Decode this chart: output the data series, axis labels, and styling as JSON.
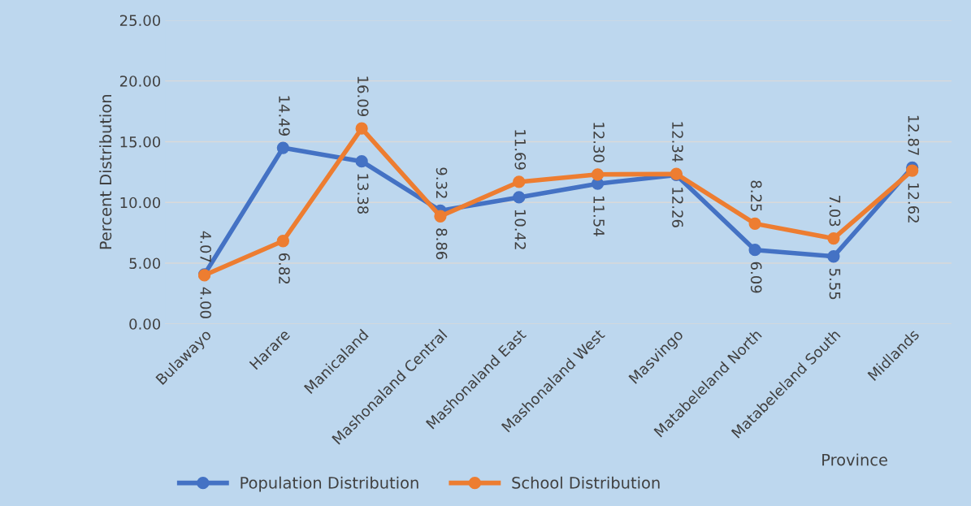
{
  "chart_data": {
    "type": "line",
    "xlabel": "Province",
    "ylabel": "Percent Distribution",
    "categories": [
      "Bulawayo",
      "Harare",
      "Manicaland",
      "Mashonaland Central",
      "Mashonaland East",
      "Mashonaland West",
      "Masvingo",
      "Matabeleland North",
      "Matabeleland South",
      "Midlands"
    ],
    "series": [
      {
        "name": "Population Distribution",
        "color": "#4472c4",
        "values": [
          4.07,
          14.49,
          13.38,
          9.32,
          10.42,
          11.54,
          12.26,
          6.09,
          5.55,
          12.87
        ],
        "value_labels": [
          "4.07",
          "14.49",
          "13.38",
          "9.32",
          "10.42",
          "11.54",
          "12.26",
          "6.09",
          "5.55",
          "12.87"
        ]
      },
      {
        "name": "School Distribution",
        "color": "#ed7d31",
        "values": [
          4.0,
          6.82,
          16.09,
          8.86,
          11.69,
          12.3,
          12.34,
          8.25,
          7.03,
          12.62
        ],
        "value_labels": [
          "4.00",
          "6.82",
          "16.09",
          "8.86",
          "11.69",
          "12.30",
          "12.34",
          "8.25",
          "7.03",
          "12.62"
        ]
      }
    ],
    "ylim": [
      0,
      25
    ],
    "yticks": [
      {
        "value": 0,
        "label": "0.00"
      },
      {
        "value": 5,
        "label": "5.00"
      },
      {
        "value": 10,
        "label": "10.00"
      },
      {
        "value": 15,
        "label": "15.00"
      },
      {
        "value": 20,
        "label": "20.00"
      },
      {
        "value": 25,
        "label": "25.00"
      }
    ],
    "grid": "y",
    "legend": "bottom",
    "marker": "circle",
    "line_style": "solid"
  }
}
